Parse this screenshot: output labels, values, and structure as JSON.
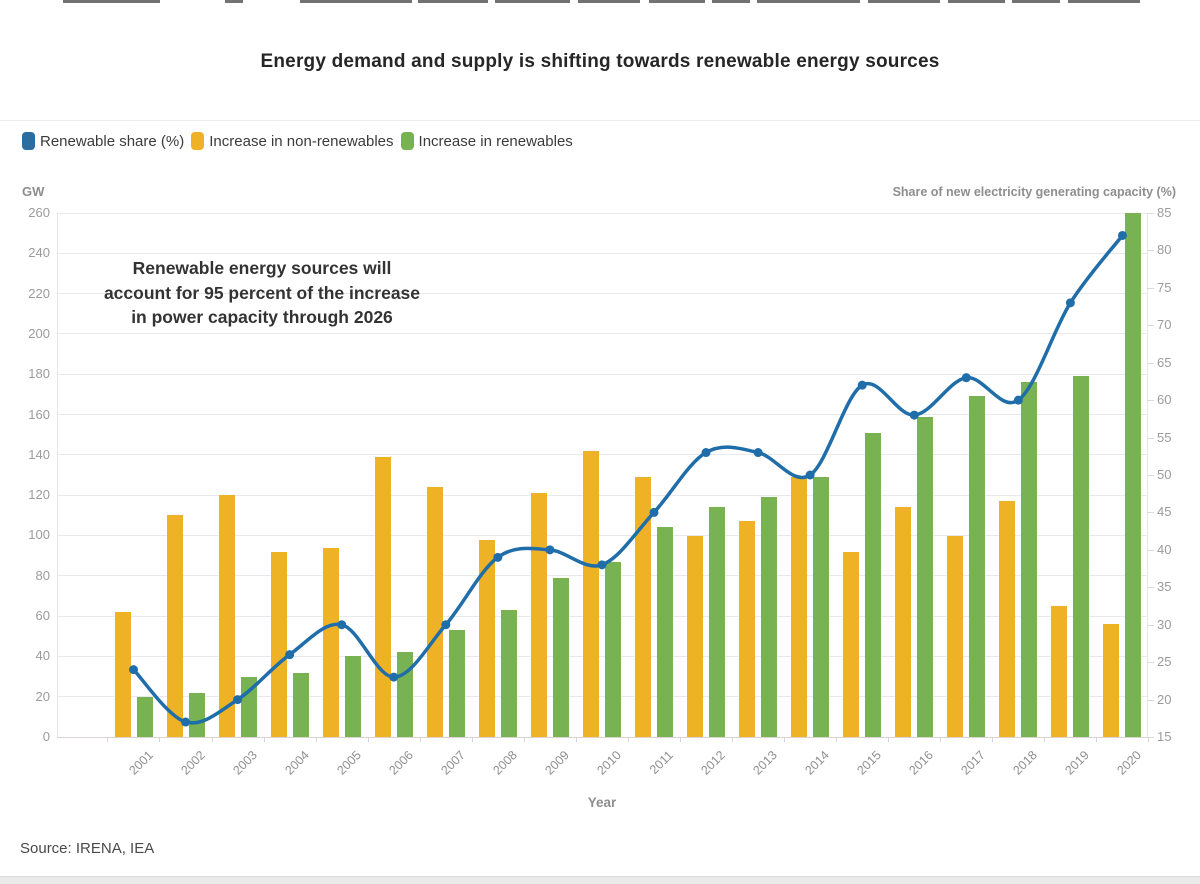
{
  "page": {
    "title": "Energy demand and supply is shifting towards renewable energy sources",
    "source_label": "Source: IRENA, IEA",
    "annotation": {
      "line1": "Renewable energy sources will",
      "line2": "account for 95 percent of the increase",
      "line3": "in power capacity through 2026"
    }
  },
  "legend": {
    "items": [
      {
        "label": "Renewable share (%)",
        "color": "#2b6d9e"
      },
      {
        "label": "Increase in non-renewables",
        "color": "#efb226"
      },
      {
        "label": "Increase in renewables",
        "color": "#79b252"
      }
    ]
  },
  "axes": {
    "left_unit": "GW",
    "right_title": "Share of new electricity generating capacity (%)",
    "x_title": "Year"
  },
  "colors": {
    "line_blue": "#1f6da9",
    "bar_yellow": "#efb226",
    "bar_green": "#79b252",
    "grid": "#e9e9e9"
  },
  "chart_data": {
    "type": "combo (grouped bar + line, dual axis)",
    "categories": [
      "2001",
      "2002",
      "2003",
      "2004",
      "2005",
      "2006",
      "2007",
      "2008",
      "2009",
      "2010",
      "2011",
      "2012",
      "2013",
      "2014",
      "2015",
      "2016",
      "2017",
      "2018",
      "2019",
      "2020"
    ],
    "series": [
      {
        "name": "Renewable share (%)",
        "type": "line",
        "axis": "right",
        "color": "#1f6da9",
        "values": [
          24,
          17,
          20,
          26,
          30,
          23,
          30,
          39,
          40,
          38,
          45,
          53,
          53,
          50,
          62,
          58,
          63,
          60,
          73,
          82
        ]
      },
      {
        "name": "Increase in non-renewables",
        "type": "bar",
        "axis": "left",
        "color": "#efb226",
        "values": [
          62,
          110,
          120,
          92,
          94,
          139,
          124,
          98,
          121,
          142,
          129,
          100,
          107,
          129,
          92,
          114,
          100,
          117,
          65,
          56
        ]
      },
      {
        "name": "Increase in renewables",
        "type": "bar",
        "axis": "left",
        "color": "#79b252",
        "values": [
          20,
          22,
          30,
          32,
          40,
          42,
          53,
          63,
          79,
          87,
          104,
          114,
          119,
          129,
          151,
          159,
          169,
          176,
          179,
          260
        ]
      }
    ],
    "left_axis": {
      "label": "GW",
      "min": 0,
      "max": 260,
      "step": 20,
      "ticks": [
        0,
        20,
        40,
        60,
        80,
        100,
        120,
        140,
        160,
        180,
        200,
        220,
        240,
        260
      ]
    },
    "right_axis": {
      "label": "Share of new electricity generating capacity (%)",
      "min": 15,
      "max": 85,
      "step": 5,
      "ticks": [
        15,
        20,
        25,
        30,
        35,
        40,
        45,
        50,
        55,
        60,
        65,
        70,
        75,
        80,
        85
      ]
    },
    "x_axis": {
      "label": "Year"
    },
    "grid": "horizontal",
    "legend_position": "top-left",
    "title": "Energy demand and supply is shifting towards renewable energy sources",
    "annotation": "Renewable energy sources will account for 95 percent of the increase in power capacity through 2026",
    "source": "Source: IRENA, IEA"
  }
}
